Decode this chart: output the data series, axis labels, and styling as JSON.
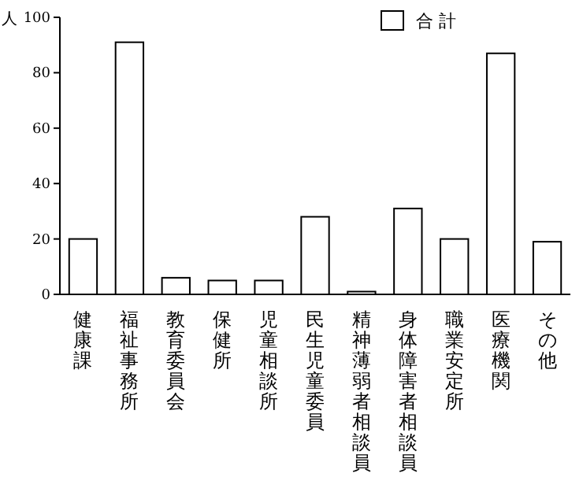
{
  "chart_data": {
    "type": "bar",
    "ylabel": "人",
    "categories": [
      "健康課",
      "福祉事務所",
      "教育委員会",
      "保健所",
      "児童相談所",
      "民生児童委員",
      "精神薄弱者相談員",
      "身体障害者相談員",
      "職業安定所",
      "医療機関",
      "その他"
    ],
    "series": [
      {
        "name": "合 計",
        "color": "#ffffff",
        "values": [
          20,
          91,
          6,
          5,
          5,
          28,
          1,
          31,
          20,
          87,
          19
        ]
      }
    ],
    "ylim": [
      0,
      100
    ],
    "yticks": [
      0,
      20,
      40,
      60,
      80,
      100
    ],
    "legend": "top right"
  }
}
